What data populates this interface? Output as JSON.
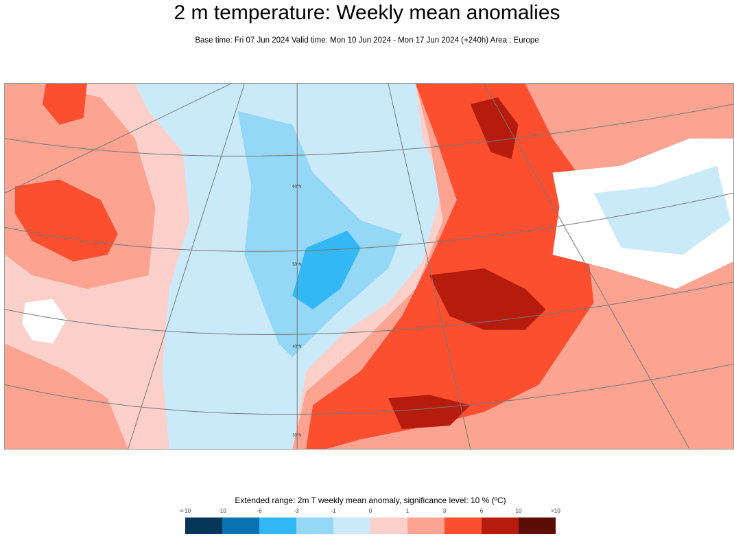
{
  "header": {
    "title": "2 m temperature: Weekly mean anomalies",
    "subtitle": "Base time: Fri 07 Jun 2024 Valid time: Mon 10 Jun 2024 - Mon 17 Jun 2024 (+240h) Area : Europe"
  },
  "map": {
    "lat_labels": [
      "60°N",
      "50°N",
      "40°N",
      "30°N"
    ]
  },
  "legend": {
    "title": "Extended range: 2m T weekly mean anomaly, significance level: 10 % (ºC)",
    "ticks": [
      "<-10",
      "-10",
      "-6",
      "-3",
      "-1",
      "0",
      "1",
      "3",
      "6",
      "10",
      ">10"
    ],
    "colors": [
      "#04365a",
      "#0a72b0",
      "#33b7f5",
      "#95d7f6",
      "#caeafa",
      "#fdd0ca",
      "#fca391",
      "#fb4f30",
      "#b51c0c",
      "#5c0d05"
    ]
  }
}
